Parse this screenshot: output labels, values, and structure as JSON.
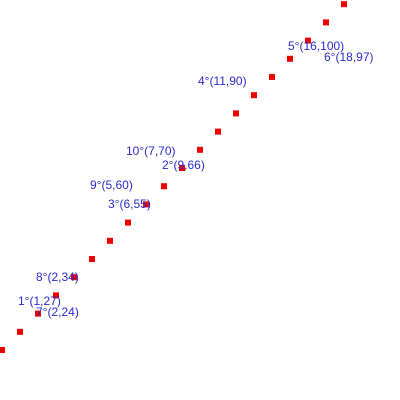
{
  "chart_data": {
    "type": "scatter",
    "title": "",
    "xlabel": "",
    "ylabel": "",
    "grid": false,
    "legend": "none",
    "colors": {
      "marker": "#ee0000",
      "label": "#2b2bcc"
    },
    "points": [
      [
        0.0,
        10
      ],
      [
        1.0,
        17
      ],
      [
        2.0,
        24
      ],
      [
        3.0,
        31
      ],
      [
        4.0,
        38
      ],
      [
        5.0,
        45
      ],
      [
        6.0,
        52
      ],
      [
        7.0,
        59
      ],
      [
        8.0,
        66
      ],
      [
        9.0,
        73
      ],
      [
        10.0,
        80
      ],
      [
        11.0,
        87
      ],
      [
        12.0,
        94
      ],
      [
        13.0,
        101
      ],
      [
        14.0,
        108
      ],
      [
        15.0,
        115
      ],
      [
        16.0,
        122
      ],
      [
        17.0,
        129
      ],
      [
        18.0,
        136
      ],
      [
        19.0,
        143
      ]
    ],
    "annotations": [
      {
        "text": "1°(1,27)"
      },
      {
        "text": "7°(2,24)"
      },
      {
        "text": "8°(2,34)"
      },
      {
        "text": "3°(6,55)"
      },
      {
        "text": "9°(5,60)"
      },
      {
        "text": "2°(9,66)"
      },
      {
        "text": "10°(7,70)"
      },
      {
        "text": "4°(11,90)"
      },
      {
        "text": "5°(16,100)"
      },
      {
        "text": "6°(18,97)"
      }
    ]
  }
}
